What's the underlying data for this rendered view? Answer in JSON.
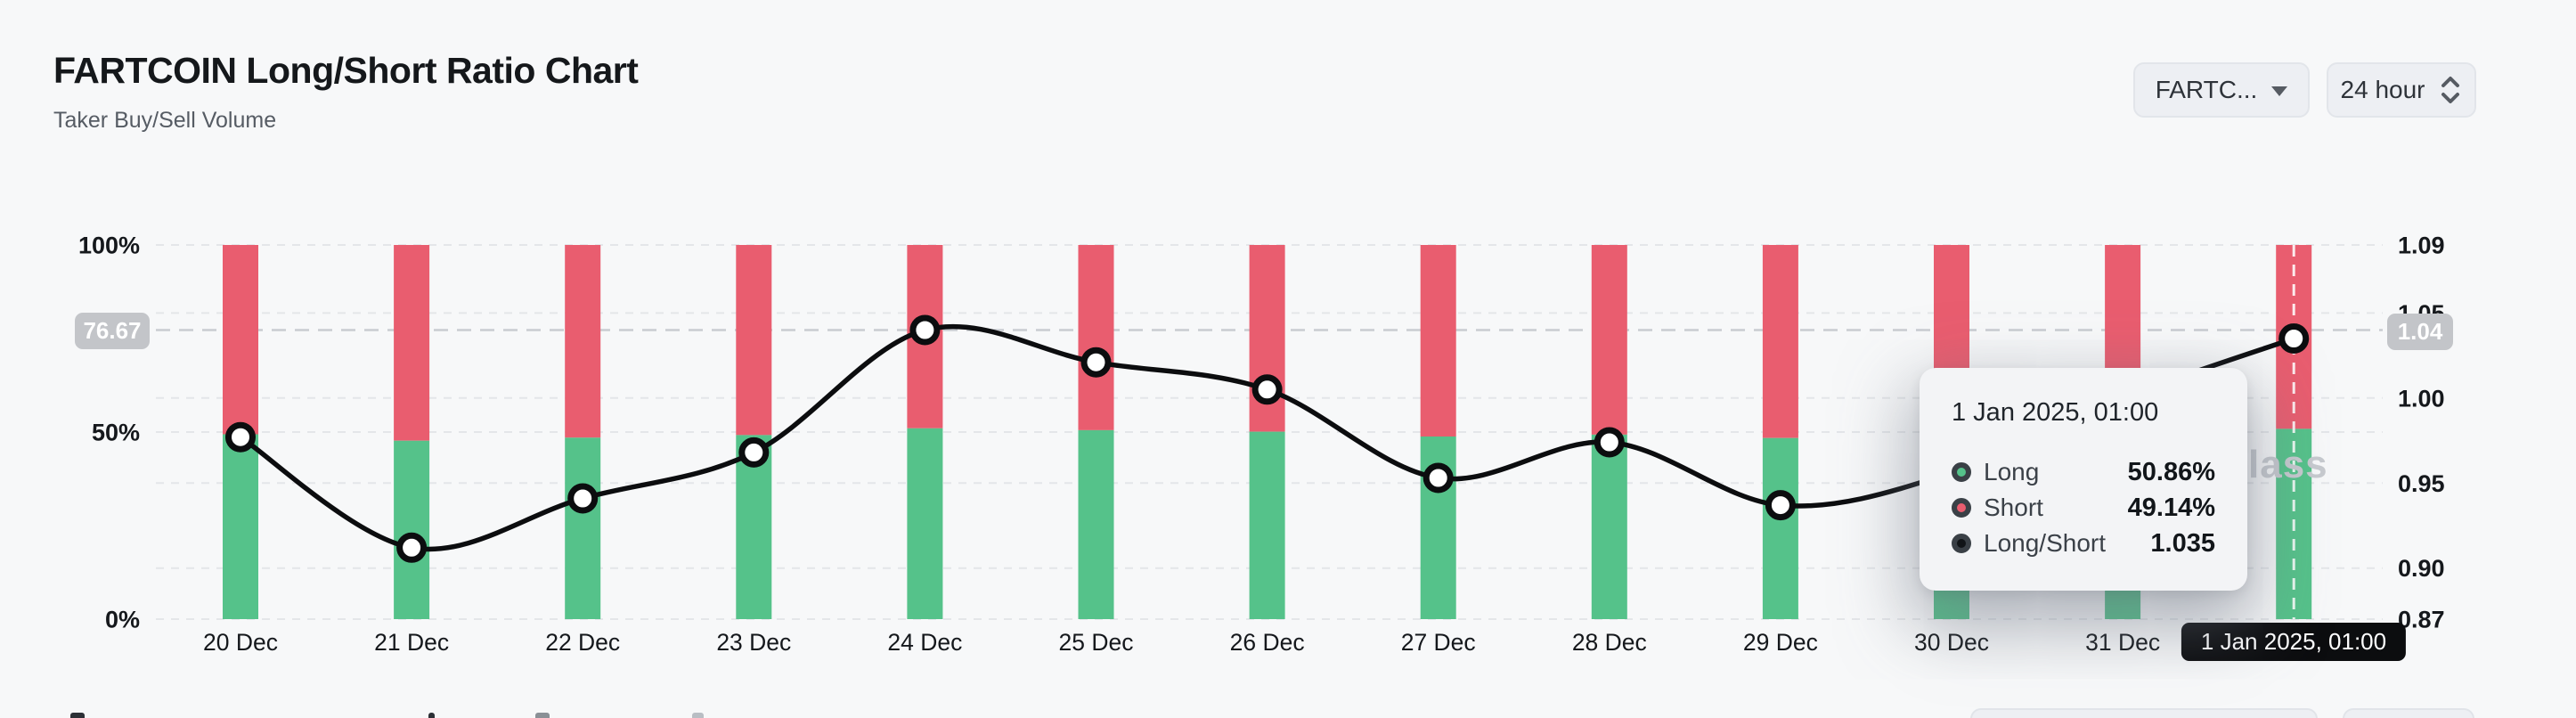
{
  "header": {
    "title": "FARTCOIN Long/Short Ratio Chart",
    "subtitle": "Taker Buy/Sell Volume"
  },
  "controls": {
    "symbol_select": {
      "label": "FARTC...",
      "icon": "caret-down-icon"
    },
    "interval_select": {
      "label": "24 hour",
      "icon": "up-down-chevrons-icon"
    }
  },
  "chart_data": {
    "type": "stacked-bar-line-combo",
    "title": "FARTCOIN Long/Short Ratio",
    "categories": [
      "20 Dec",
      "21 Dec",
      "22 Dec",
      "23 Dec",
      "24 Dec",
      "25 Dec",
      "26 Dec",
      "27 Dec",
      "28 Dec",
      "29 Dec",
      "30 Dec",
      "31 Dec",
      "1 Jan 2025, 01:00"
    ],
    "series": [
      {
        "name": "Long",
        "type": "bar",
        "stack": "volume",
        "unit": "%",
        "color": "#55c28a",
        "values": [
          49.4,
          47.7,
          48.5,
          49.2,
          51.0,
          50.5,
          50.1,
          48.8,
          49.3,
          48.4,
          48.9,
          50.0,
          50.86
        ]
      },
      {
        "name": "Short",
        "type": "bar",
        "stack": "volume",
        "unit": "%",
        "color": "#e95d6f",
        "values": [
          50.6,
          52.3,
          51.5,
          50.8,
          49.0,
          49.5,
          49.9,
          51.2,
          50.7,
          51.6,
          51.1,
          50.0,
          49.14
        ]
      },
      {
        "name": "Long/Short",
        "type": "line",
        "axis": "right",
        "color": "#0c0d0f",
        "values": [
          0.977,
          0.912,
          0.941,
          0.968,
          1.04,
          1.021,
          1.005,
          0.953,
          0.974,
          0.937,
          0.956,
          1.0,
          1.035
        ]
      }
    ],
    "left_axis": {
      "unit": "%",
      "min": 0,
      "max": 100,
      "ticks": [
        {
          "label": "100%",
          "value": 100
        },
        {
          "label": "50%",
          "value": 50
        },
        {
          "label": "0%",
          "value": 0
        }
      ]
    },
    "right_axis": {
      "min": 0.87,
      "max": 1.09,
      "ticks": [
        {
          "label": "1.09",
          "value": 1.09
        },
        {
          "label": "1.05",
          "value": 1.05
        },
        {
          "label": "1.00",
          "value": 1.0
        },
        {
          "label": "0.95",
          "value": 0.95
        },
        {
          "label": "0.90",
          "value": 0.9
        },
        {
          "label": "0.87",
          "value": 0.87
        }
      ]
    },
    "grid": {
      "visible": true,
      "style": "dashed"
    },
    "legend_position": "none"
  },
  "crosshair": {
    "left_label": "76.67",
    "right_label": "1.04",
    "x_label": "1 Jan 2025, 01:00",
    "x_index": 12,
    "y_left_value": 76.67,
    "y_right_value": 1.04
  },
  "tooltip": {
    "title": "1 Jan 2025, 01:00",
    "rows": [
      {
        "label": "Long",
        "value": "50.86%",
        "color": "#55c28a"
      },
      {
        "label": "Short",
        "value": "49.14%",
        "color": "#e95d6f"
      },
      {
        "label": "Long/Short",
        "value": "1.035",
        "color": "#111417"
      }
    ]
  },
  "watermark": {
    "text": "lass"
  },
  "colors": {
    "long": "#55c28a",
    "short": "#e95d6f",
    "line": "#0c0d0f",
    "grid": "#e4e6e9",
    "crosshair": "#c9ccd1",
    "badge_gray": "#c3c5c9",
    "badge_black": "#0c0d0f",
    "background": "#f7f8f9"
  }
}
